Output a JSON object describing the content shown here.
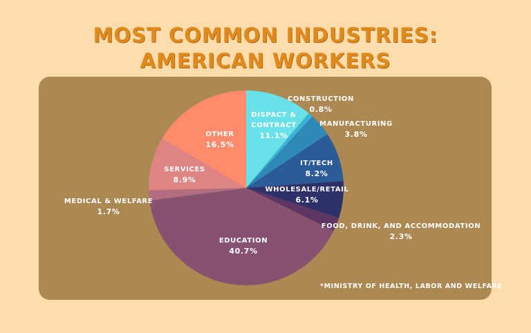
{
  "title": {
    "line1": "MOST COMMON INDUSTRIES:",
    "line2": "AMERICAN WORKERS"
  },
  "source_note": "*MINISTRY OF HEALTH, LABOR AND WELFARE",
  "colors": {
    "background": "#fedcab",
    "panel": "#ac8852",
    "title": "#e08a1e"
  },
  "chart_data": {
    "type": "pie",
    "title": "Most Common Industries: American Workers",
    "unit": "%",
    "start_angle_deg": 0,
    "direction": "clockwise",
    "categories": [
      "Dispact & Contract",
      "Construction",
      "Manufacturing",
      "IT/Tech",
      "Wholesale/Retail",
      "Food, Drink, and Accommodation",
      "Education",
      "Medical & Welfare",
      "Services",
      "Other"
    ],
    "values": [
      11.1,
      0.8,
      3.8,
      8.2,
      6.1,
      2.3,
      40.7,
      1.7,
      8.9,
      16.5
    ],
    "colors": [
      "#68e2e8",
      "#3ab3d5",
      "#2e88b8",
      "#2b5c98",
      "#2e306a",
      "#5e3663",
      "#875170",
      "#b26e80",
      "#e08383",
      "#ff8b6c"
    ],
    "labels": [
      {
        "name": "DISPACT &\nCONTRACT",
        "line1": "DISPACT &",
        "line2": "CONTRACT",
        "pct": "11.1%"
      },
      {
        "name": "CONSTRUCTION",
        "line1": "CONSTRUCTION",
        "pct": "0.8%"
      },
      {
        "name": "MANUFACTURING",
        "line1": "MANUFACTURING",
        "pct": "3.8%"
      },
      {
        "name": "IT/TECH",
        "line1": "IT/TECH",
        "pct": "8.2%"
      },
      {
        "name": "WHOLESALE/RETAIL",
        "line1": "WHOLESALE/RETAIL",
        "pct": "6.1%"
      },
      {
        "name": "FOOD, DRINK, AND ACCOMMODATION",
        "line1": "FOOD, DRINK, AND ACCOMMODATION",
        "pct": "2.3%"
      },
      {
        "name": "EDUCATION",
        "line1": "EDUCATION",
        "pct": "40.7%"
      },
      {
        "name": "MEDICAL & WELFARE",
        "line1": "MEDICAL & WELFARE",
        "pct": "1.7%"
      },
      {
        "name": "SERVICES",
        "line1": "SERVICES",
        "pct": "8.9%"
      },
      {
        "name": "OTHER",
        "line1": "OTHER",
        "pct": "16.5%"
      }
    ],
    "legend": "none (inline labels)"
  }
}
